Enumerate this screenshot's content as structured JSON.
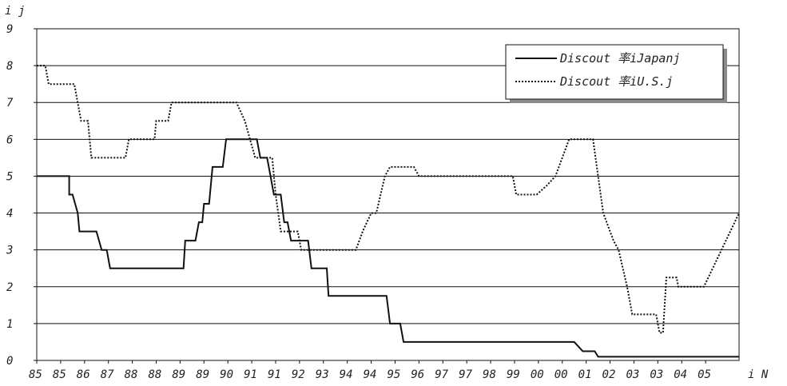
{
  "chart_data": {
    "type": "line",
    "title": "",
    "y_unit_label": "i   j",
    "x_unit_label": "i  N",
    "ylim": [
      0,
      9
    ],
    "yticks": [
      0,
      1,
      2,
      3,
      4,
      5,
      6,
      7,
      8,
      9
    ],
    "xlim": [
      1985.0,
      2005.58
    ],
    "grid": "horizontal",
    "legend_position": "top-right",
    "x_tick_labels": [
      {
        "x": 1985.0,
        "label": "85"
      },
      {
        "x": 1985.7,
        "label": "85"
      },
      {
        "x": 1986.4,
        "label": "86"
      },
      {
        "x": 1987.1,
        "label": "87"
      },
      {
        "x": 1987.8,
        "label": "88"
      },
      {
        "x": 1988.5,
        "label": "88"
      },
      {
        "x": 1989.2,
        "label": "89"
      },
      {
        "x": 1989.9,
        "label": "89"
      },
      {
        "x": 1990.6,
        "label": "90"
      },
      {
        "x": 1991.3,
        "label": "91"
      },
      {
        "x": 1992.0,
        "label": "91"
      },
      {
        "x": 1992.7,
        "label": "92"
      },
      {
        "x": 1993.4,
        "label": "93"
      },
      {
        "x": 1994.1,
        "label": "94"
      },
      {
        "x": 1994.8,
        "label": "94"
      },
      {
        "x": 1995.5,
        "label": "95"
      },
      {
        "x": 1996.2,
        "label": "96"
      },
      {
        "x": 1996.9,
        "label": "97"
      },
      {
        "x": 1997.6,
        "label": "97"
      },
      {
        "x": 1998.3,
        "label": "98"
      },
      {
        "x": 1999.0,
        "label": "99"
      },
      {
        "x": 1999.7,
        "label": "00"
      },
      {
        "x": 2000.4,
        "label": "00"
      },
      {
        "x": 2001.1,
        "label": "01"
      },
      {
        "x": 2001.8,
        "label": "02"
      },
      {
        "x": 2002.5,
        "label": "03"
      },
      {
        "x": 2003.2,
        "label": "03"
      },
      {
        "x": 2003.9,
        "label": "04"
      },
      {
        "x": 2004.6,
        "label": "05"
      }
    ],
    "series": [
      {
        "name": "Discout rate (Japan)",
        "legend_label": "Discout 率iJapanj",
        "style": "solid",
        "color": "#111111",
        "points": [
          [
            1985.0,
            5.0
          ],
          [
            1985.95,
            5.0
          ],
          [
            1985.95,
            4.5
          ],
          [
            1986.05,
            4.5
          ],
          [
            1986.2,
            4.0
          ],
          [
            1986.25,
            3.5
          ],
          [
            1986.75,
            3.5
          ],
          [
            1986.9,
            3.0
          ],
          [
            1987.05,
            3.0
          ],
          [
            1987.15,
            2.5
          ],
          [
            1989.3,
            2.5
          ],
          [
            1989.35,
            3.25
          ],
          [
            1989.65,
            3.25
          ],
          [
            1989.75,
            3.75
          ],
          [
            1989.85,
            3.75
          ],
          [
            1989.9,
            4.25
          ],
          [
            1990.05,
            4.25
          ],
          [
            1990.15,
            5.25
          ],
          [
            1990.45,
            5.25
          ],
          [
            1990.55,
            6.0
          ],
          [
            1991.45,
            6.0
          ],
          [
            1991.55,
            5.5
          ],
          [
            1991.75,
            5.5
          ],
          [
            1991.85,
            5.0
          ],
          [
            1991.95,
            4.5
          ],
          [
            1992.15,
            4.5
          ],
          [
            1992.25,
            3.75
          ],
          [
            1992.35,
            3.75
          ],
          [
            1992.45,
            3.25
          ],
          [
            1992.95,
            3.25
          ],
          [
            1993.05,
            2.5
          ],
          [
            1993.5,
            2.5
          ],
          [
            1993.55,
            1.75
          ],
          [
            1995.25,
            1.75
          ],
          [
            1995.35,
            1.0
          ],
          [
            1995.65,
            1.0
          ],
          [
            1995.75,
            0.5
          ],
          [
            2000.75,
            0.5
          ],
          [
            2001.0,
            0.25
          ],
          [
            2001.35,
            0.25
          ],
          [
            2001.45,
            0.1
          ],
          [
            2005.58,
            0.1
          ]
        ]
      },
      {
        "name": "Discout rate (U.S.)",
        "legend_label": "Discout 率iU.S.j",
        "style": "dotted",
        "color": "#111111",
        "points": [
          [
            1985.0,
            8.0
          ],
          [
            1985.25,
            8.0
          ],
          [
            1985.35,
            7.5
          ],
          [
            1986.1,
            7.5
          ],
          [
            1986.3,
            6.5
          ],
          [
            1986.5,
            6.5
          ],
          [
            1986.6,
            5.5
          ],
          [
            1987.6,
            5.5
          ],
          [
            1987.7,
            6.0
          ],
          [
            1988.45,
            6.0
          ],
          [
            1988.5,
            6.5
          ],
          [
            1988.85,
            6.5
          ],
          [
            1988.95,
            7.0
          ],
          [
            1990.85,
            7.0
          ],
          [
            1991.1,
            6.5
          ],
          [
            1991.25,
            6.0
          ],
          [
            1991.4,
            5.5
          ],
          [
            1991.9,
            5.5
          ],
          [
            1992.0,
            4.5
          ],
          [
            1992.15,
            3.5
          ],
          [
            1992.65,
            3.5
          ],
          [
            1992.75,
            3.0
          ],
          [
            1994.35,
            3.0
          ],
          [
            1994.55,
            3.5
          ],
          [
            1994.8,
            4.0
          ],
          [
            1994.95,
            4.0
          ],
          [
            1995.2,
            5.0
          ],
          [
            1995.35,
            5.25
          ],
          [
            1996.05,
            5.25
          ],
          [
            1996.2,
            5.0
          ],
          [
            1998.95,
            5.0
          ],
          [
            1999.05,
            4.5
          ],
          [
            1999.65,
            4.5
          ],
          [
            1999.95,
            4.75
          ],
          [
            2000.2,
            5.0
          ],
          [
            2000.6,
            6.0
          ],
          [
            2001.3,
            6.0
          ],
          [
            2001.6,
            4.0
          ],
          [
            2001.9,
            3.25
          ],
          [
            2002.05,
            3.0
          ],
          [
            2002.3,
            2.0
          ],
          [
            2002.45,
            1.25
          ],
          [
            2003.15,
            1.25
          ],
          [
            2003.25,
            0.75
          ],
          [
            2003.35,
            0.75
          ],
          [
            2003.45,
            2.25
          ],
          [
            2003.75,
            2.25
          ],
          [
            2003.8,
            2.0
          ],
          [
            2004.55,
            2.0
          ],
          [
            2005.58,
            4.0
          ]
        ]
      }
    ]
  }
}
